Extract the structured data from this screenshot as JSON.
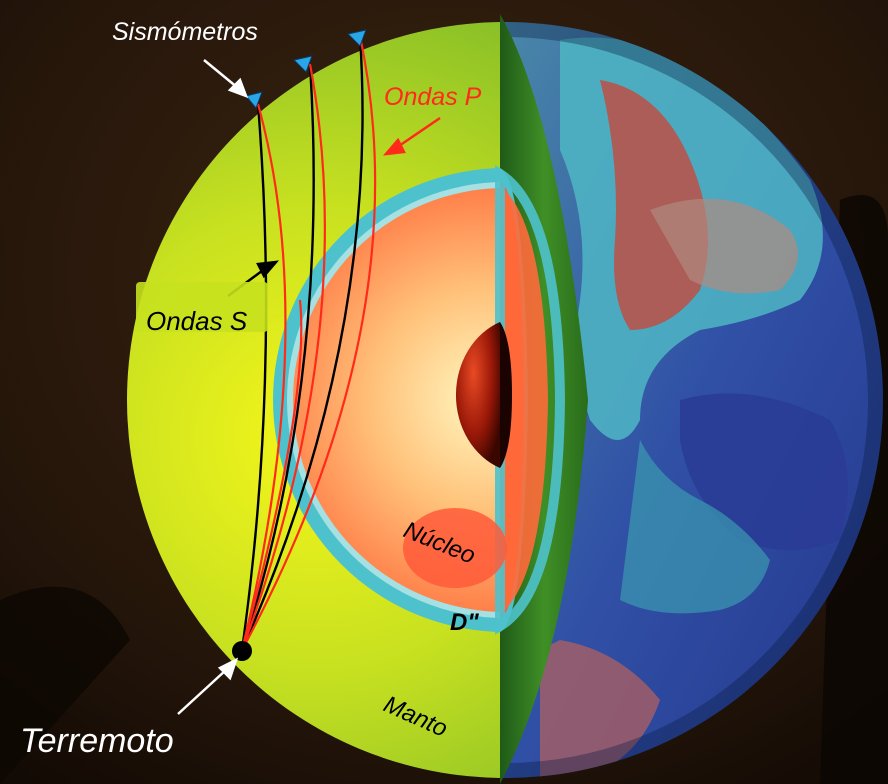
{
  "labels": {
    "seismometers": "Sismómetros",
    "p_waves": "Ondas P",
    "s_waves": "Ondas S",
    "core": "Núcleo",
    "d_layer": "D\"",
    "mantle": "Manto",
    "earthquake": "Terremoto"
  },
  "colors": {
    "background": "#1f1208",
    "mantle_green": "#8ccc2a",
    "mantle_bright": "#f6f61a",
    "cut_face_green": "#2e7a1e",
    "d_layer_cyan": "#4ec2cc",
    "outer_core": "#ff6a3a",
    "inner_core": "#b0200a",
    "p_wave_red": "#ff2a1a",
    "s_wave_black": "#000000",
    "seismometer_cyan": "#29a6e6",
    "ocean_blue": "#2f4fa8",
    "continent_red": "#c44a3c"
  }
}
